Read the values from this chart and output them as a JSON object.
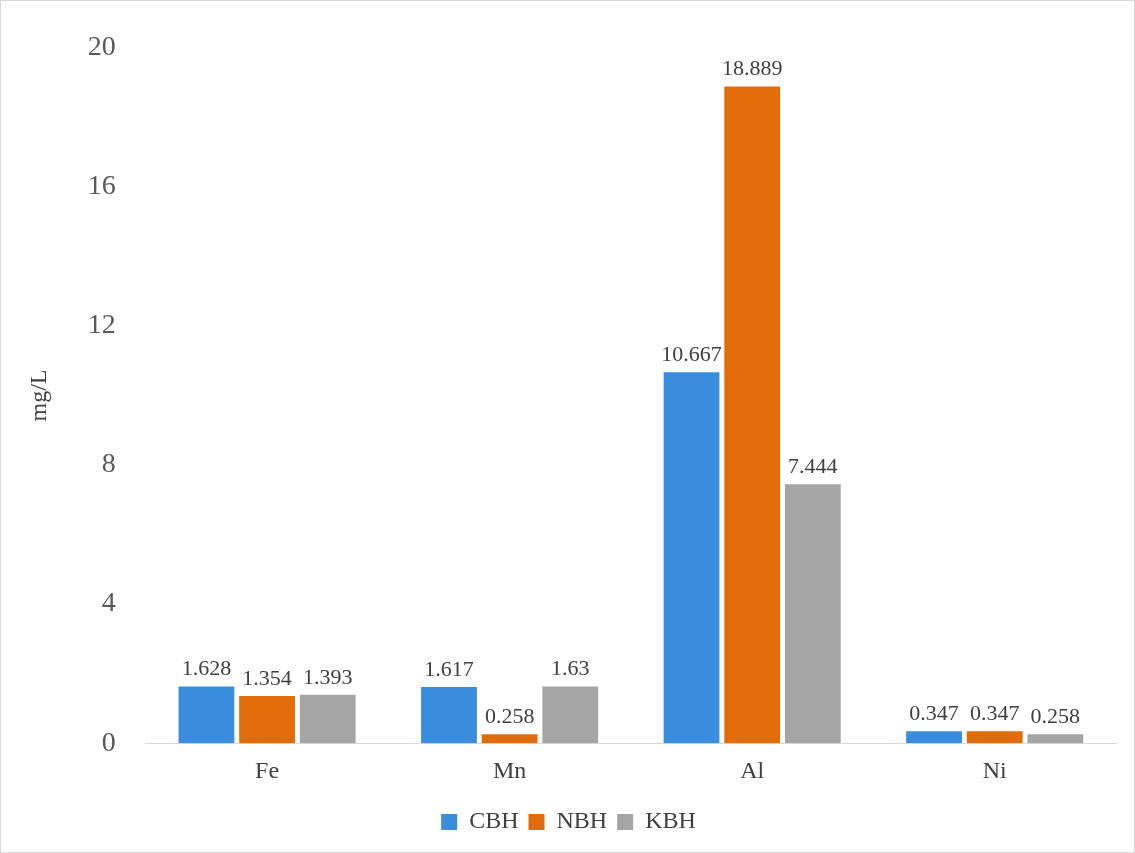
{
  "chart_data": {
    "type": "bar",
    "ylabel": "mg/L",
    "categories": [
      "Fe",
      "Mn",
      "Al",
      "Ni"
    ],
    "series": [
      {
        "name": "CBH",
        "color": "#3a8ddc",
        "values": [
          1.628,
          1.617,
          10.667,
          0.347
        ]
      },
      {
        "name": "NBH",
        "color": "#e36c0a",
        "values": [
          1.354,
          0.258,
          18.889,
          0.347
        ]
      },
      {
        "name": "KBH",
        "color": "#a5a5a5",
        "values": [
          1.393,
          1.63,
          7.444,
          0.258
        ]
      }
    ],
    "ylim": [
      0,
      20
    ],
    "yticks": [
      0,
      4,
      8,
      12,
      16,
      20
    ],
    "grid": false,
    "legend": "bottom",
    "data_labels": true
  }
}
